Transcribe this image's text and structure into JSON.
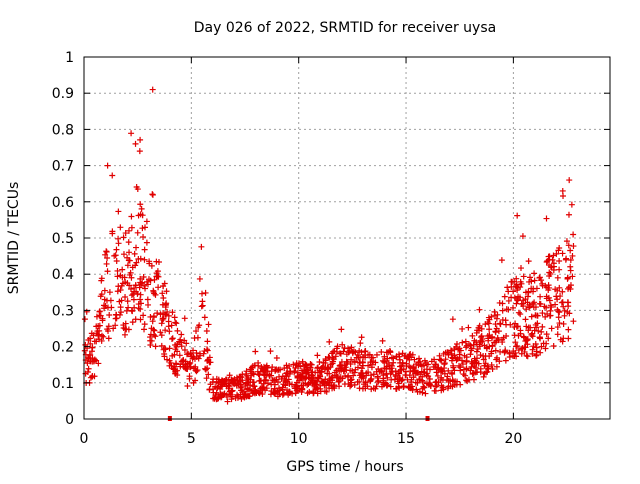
{
  "chart_data": {
    "type": "scatter",
    "title": "Day 026 of 2022, SRMTID for receiver uysa",
    "xlabel": "GPS time / hours",
    "ylabel": "SRMTID / TECUs",
    "xlim": [
      0,
      24.5
    ],
    "ylim": [
      0,
      1
    ],
    "xticks": [
      0,
      5,
      10,
      15,
      20
    ],
    "xtick_labels": [
      "0",
      "5",
      "10",
      "15",
      "20"
    ],
    "yticks": [
      0,
      0.1,
      0.2,
      0.3,
      0.4,
      0.5,
      0.6,
      0.7,
      0.8,
      0.9,
      1
    ],
    "ytick_labels": [
      "0",
      "0.1",
      "0.2",
      "0.3",
      "0.4",
      "0.5",
      "0.6",
      "0.7",
      "0.8",
      "0.9",
      "1"
    ],
    "grid": true,
    "marker": "+",
    "color": "#e00000",
    "x_range_of_data": [
      0,
      22.8
    ],
    "trend": [
      {
        "x": 0.0,
        "y": 0.14
      },
      {
        "x": 0.5,
        "y": 0.15
      },
      {
        "x": 1.0,
        "y": 0.3
      },
      {
        "x": 1.5,
        "y": 0.38
      },
      {
        "x": 2.0,
        "y": 0.32
      },
      {
        "x": 2.5,
        "y": 0.42
      },
      {
        "x": 3.0,
        "y": 0.3
      },
      {
        "x": 3.5,
        "y": 0.28
      },
      {
        "x": 4.0,
        "y": 0.2
      },
      {
        "x": 4.5,
        "y": 0.15
      },
      {
        "x": 5.0,
        "y": 0.12
      },
      {
        "x": 5.5,
        "y": 0.22
      },
      {
        "x": 6.0,
        "y": 0.07
      },
      {
        "x": 7.0,
        "y": 0.07
      },
      {
        "x": 8.0,
        "y": 0.1
      },
      {
        "x": 9.0,
        "y": 0.09
      },
      {
        "x": 10.0,
        "y": 0.1
      },
      {
        "x": 11.0,
        "y": 0.1
      },
      {
        "x": 12.0,
        "y": 0.13
      },
      {
        "x": 13.0,
        "y": 0.12
      },
      {
        "x": 14.0,
        "y": 0.12
      },
      {
        "x": 15.0,
        "y": 0.12
      },
      {
        "x": 16.0,
        "y": 0.1
      },
      {
        "x": 17.0,
        "y": 0.12
      },
      {
        "x": 18.0,
        "y": 0.15
      },
      {
        "x": 19.0,
        "y": 0.18
      },
      {
        "x": 20.0,
        "y": 0.25
      },
      {
        "x": 21.0,
        "y": 0.25
      },
      {
        "x": 22.0,
        "y": 0.3
      },
      {
        "x": 22.8,
        "y": 0.33
      }
    ],
    "notable_points": [
      {
        "x": 3.2,
        "y": 0.91
      },
      {
        "x": 2.4,
        "y": 0.76
      },
      {
        "x": 1.1,
        "y": 0.7
      },
      {
        "x": 2.6,
        "y": 0.74
      },
      {
        "x": 22.6,
        "y": 0.66
      },
      {
        "x": 22.3,
        "y": 0.63
      }
    ],
    "gap_markers_x": [
      4.0,
      16.0
    ],
    "point_count": 1600
  }
}
